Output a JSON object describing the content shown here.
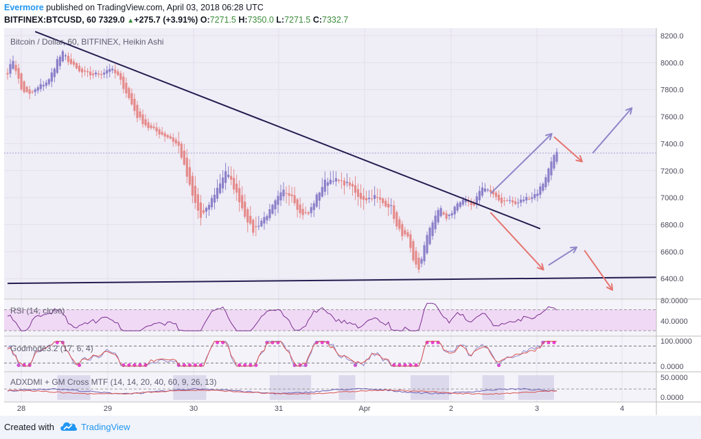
{
  "header": {
    "author": "Evermore",
    "published_text": " published on TradingView.com, April 03, 2018 06:28 UTC",
    "symbol": "BITFINEX:BTCUSD, 60",
    "last": "7329.0",
    "change": "+275.7 (+3.91%)",
    "o_label": "O:",
    "o_value": "7271.5",
    "h_label": "H:",
    "h_value": "7350.0",
    "l_label": "L:",
    "l_value": "7271.5",
    "c_label": "C:",
    "c_value": "7332.7"
  },
  "footer": {
    "created_with": "Created with",
    "brand": "TradingView"
  },
  "colors": {
    "up": "#8b80c9",
    "down": "#e58a8a",
    "bg": "#efedf6",
    "line": "#221d4f",
    "arrow_up": "#8e86c9",
    "arrow_down": "#e5746e",
    "rsi_band": "#f0d9f5",
    "dots": "#e83ed3"
  },
  "chart_data": {
    "type": "candlestick",
    "title": "Bitcoin / Dollar, 60, BITFINEX, Heikin Ashi",
    "x_ticks": [
      "28",
      "29",
      "30",
      "31",
      "Apr",
      "2",
      "3",
      "4"
    ],
    "y_ticks": [
      "8200.0",
      "8000.0",
      "7800.0",
      "7600.0",
      "7400.0",
      "7200.0",
      "7000.0",
      "6800.0",
      "6600.0",
      "6400.0"
    ],
    "ylim": [
      6330,
      8220
    ],
    "close_path": [
      [
        0,
        7930
      ],
      [
        2,
        8020
      ],
      [
        5,
        7800
      ],
      [
        8,
        7760
      ],
      [
        12,
        7830
      ],
      [
        15,
        7870
      ],
      [
        18,
        8020
      ],
      [
        20,
        8070
      ],
      [
        23,
        7990
      ],
      [
        26,
        7930
      ],
      [
        30,
        7910
      ],
      [
        34,
        7920
      ],
      [
        37,
        7960
      ],
      [
        40,
        7900
      ],
      [
        43,
        7780
      ],
      [
        47,
        7600
      ],
      [
        51,
        7520
      ],
      [
        55,
        7480
      ],
      [
        59,
        7440
      ],
      [
        62,
        7380
      ],
      [
        64,
        7230
      ],
      [
        67,
        7010
      ],
      [
        70,
        6850
      ],
      [
        72,
        6910
      ],
      [
        74,
        6990
      ],
      [
        77,
        7110
      ],
      [
        79,
        7200
      ],
      [
        81,
        7120
      ],
      [
        84,
        6980
      ],
      [
        86,
        6870
      ],
      [
        89,
        6750
      ],
      [
        92,
        6830
      ],
      [
        95,
        6900
      ],
      [
        98,
        7000
      ],
      [
        100,
        7050
      ],
      [
        103,
        7020
      ],
      [
        106,
        6880
      ],
      [
        109,
        6880
      ],
      [
        112,
        7010
      ],
      [
        115,
        7120
      ],
      [
        118,
        7140
      ],
      [
        121,
        7110
      ],
      [
        124,
        7100
      ],
      [
        127,
        7000
      ],
      [
        130,
        6990
      ],
      [
        133,
        7010
      ],
      [
        136,
        6960
      ],
      [
        139,
        6930
      ],
      [
        141,
        6780
      ],
      [
        143,
        6730
      ],
      [
        145,
        6700
      ],
      [
        147,
        6520
      ],
      [
        149,
        6470
      ],
      [
        151,
        6640
      ],
      [
        153,
        6780
      ],
      [
        155,
        6870
      ],
      [
        157,
        6920
      ],
      [
        159,
        6840
      ],
      [
        161,
        6890
      ],
      [
        163,
        6960
      ],
      [
        165,
        6990
      ],
      [
        167,
        6950
      ],
      [
        169,
        6930
      ],
      [
        171,
        7060
      ],
      [
        173,
        7080
      ],
      [
        175,
        7040
      ],
      [
        177,
        6990
      ],
      [
        179,
        6970
      ],
      [
        181,
        6990
      ],
      [
        184,
        6950
      ],
      [
        187,
        6990
      ],
      [
        190,
        7010
      ],
      [
        192,
        7040
      ],
      [
        194,
        7110
      ],
      [
        196,
        7210
      ],
      [
        198,
        7330
      ],
      [
        199,
        7330
      ]
    ],
    "annotations": [
      {
        "type": "trendline",
        "from": [
          10,
          8230
        ],
        "to": [
          193,
          6770
        ]
      },
      {
        "type": "trendline",
        "from": [
          0,
          6365
        ],
        "to": [
          235,
          6410
        ]
      },
      {
        "type": "arrow",
        "direction": "up",
        "from": [
          175,
          7030
        ],
        "to": [
          197,
          7470
        ]
      },
      {
        "type": "arrow",
        "direction": "down",
        "from": [
          198,
          7450
        ],
        "to": [
          208,
          7270
        ]
      },
      {
        "type": "arrow",
        "direction": "up",
        "from": [
          212,
          7330
        ],
        "to": [
          226,
          7660
        ]
      },
      {
        "type": "arrow",
        "direction": "down",
        "from": [
          175,
          6890
        ],
        "to": [
          194,
          6470
        ]
      },
      {
        "type": "arrow",
        "direction": "up",
        "from": [
          196,
          6500
        ],
        "to": [
          206,
          6630
        ]
      },
      {
        "type": "arrow",
        "direction": "down",
        "from": [
          209,
          6610
        ],
        "to": [
          219,
          6320
        ]
      }
    ],
    "indicators": [
      {
        "name": "RSI (14, close)",
        "y_ticks": [
          "80.0000",
          "40.0000"
        ],
        "ylim": [
          25,
          85
        ],
        "band": [
          30,
          70
        ]
      },
      {
        "name": "Godmode3.2 (17, 6, 4)",
        "y_ticks": [
          "100.0000",
          "0.0000"
        ],
        "ylim": [
          -10,
          115
        ],
        "levels": [
          15,
          85
        ]
      },
      {
        "name": "ADXDMI + GM Cross MTF (14, 14, 20, 40, 60, 9, 26, 13)",
        "y_ticks": [
          "50.0000",
          "0.0000"
        ],
        "ylim": [
          -8,
          60
        ]
      }
    ]
  }
}
